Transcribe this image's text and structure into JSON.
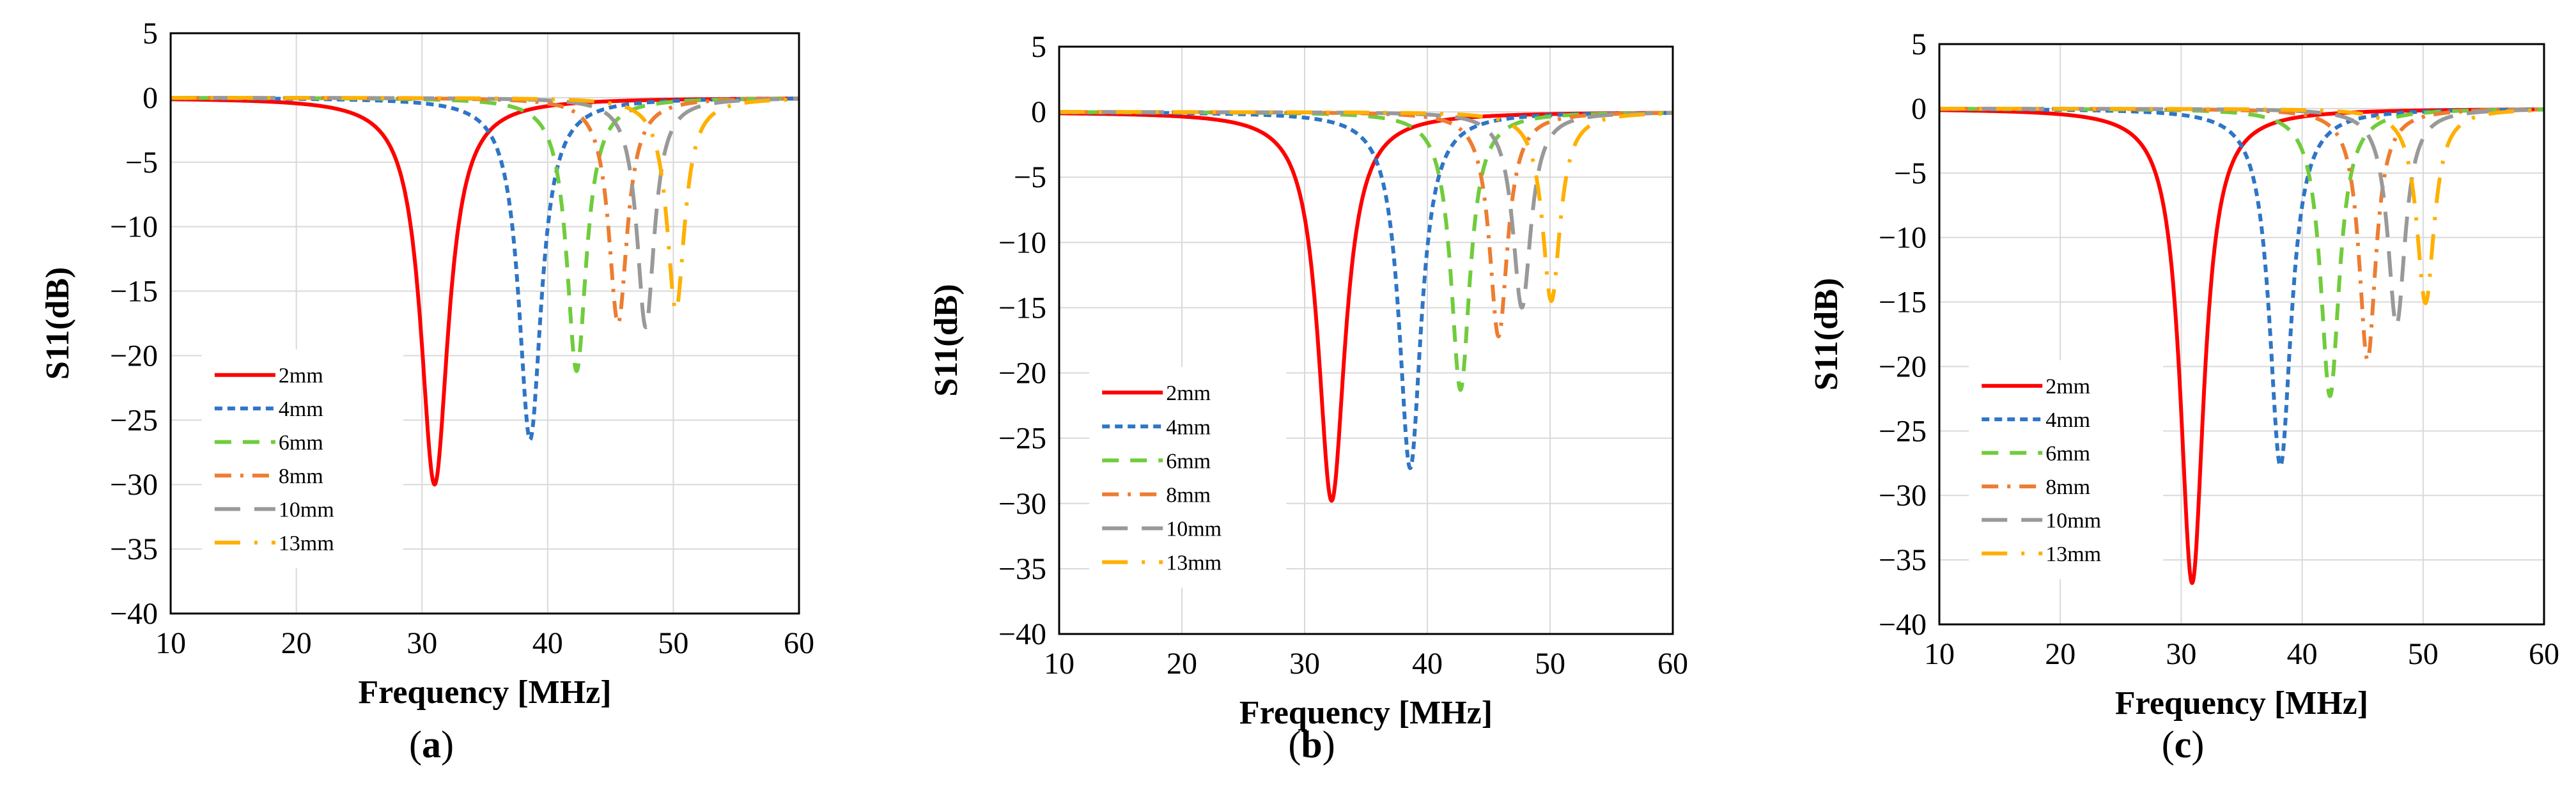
{
  "chart_data": [
    {
      "type": "line",
      "panel_label": "a",
      "xlabel": "Frequency [MHz]",
      "ylabel": "S11(dB)",
      "xlim": [
        10,
        60
      ],
      "ylim": [
        -40,
        5
      ],
      "xticks": [
        10,
        20,
        30,
        40,
        50,
        60
      ],
      "yticks": [
        5,
        0,
        -5,
        -10,
        -15,
        -20,
        -25,
        -30,
        -35,
        -40
      ],
      "grid": true,
      "legend_position": "lower-left",
      "series": [
        {
          "name": "2mm",
          "color": "#ff0000",
          "style": "solid",
          "resonance_mhz": 31.0,
          "min_db": -30.0,
          "halfwidth_mhz": 1.34
        },
        {
          "name": "4mm",
          "color": "#2e75c6",
          "style": "short-dash",
          "resonance_mhz": 38.6,
          "min_db": -26.5,
          "halfwidth_mhz": 1.1
        },
        {
          "name": "6mm",
          "color": "#70cc3c",
          "style": "dash",
          "resonance_mhz": 42.3,
          "min_db": -21.2,
          "halfwidth_mhz": 0.95
        },
        {
          "name": "8mm",
          "color": "#ed7d31",
          "style": "dash-dot",
          "resonance_mhz": 45.6,
          "min_db": -17.5,
          "halfwidth_mhz": 0.9
        },
        {
          "name": "10mm",
          "color": "#999999",
          "style": "long-dash",
          "resonance_mhz": 47.8,
          "min_db": -17.8,
          "halfwidth_mhz": 0.85
        },
        {
          "name": "13mm",
          "color": "#ffb000",
          "style": "long-dash-dot",
          "resonance_mhz": 50.2,
          "min_db": -16.5,
          "halfwidth_mhz": 0.86
        }
      ]
    },
    {
      "type": "line",
      "panel_label": "b",
      "xlabel": "Frequency [MHz]",
      "ylabel": "S11(dB)",
      "xlim": [
        10,
        60
      ],
      "ylim": [
        -40,
        5
      ],
      "xticks": [
        10,
        20,
        30,
        40,
        50,
        60
      ],
      "yticks": [
        5,
        0,
        -5,
        -10,
        -15,
        -20,
        -25,
        -30,
        -35,
        -40
      ],
      "grid": true,
      "legend_position": "lower-left",
      "series": [
        {
          "name": "2mm",
          "color": "#ff0000",
          "style": "solid",
          "resonance_mhz": 32.2,
          "min_db": -29.8,
          "halfwidth_mhz": 1.34
        },
        {
          "name": "4mm",
          "color": "#2e75c6",
          "style": "short-dash",
          "resonance_mhz": 38.6,
          "min_db": -27.3,
          "halfwidth_mhz": 1.1
        },
        {
          "name": "6mm",
          "color": "#70cc3c",
          "style": "dash",
          "resonance_mhz": 42.7,
          "min_db": -21.3,
          "halfwidth_mhz": 0.95
        },
        {
          "name": "8mm",
          "color": "#ed7d31",
          "style": "dash-dot",
          "resonance_mhz": 45.8,
          "min_db": -17.2,
          "halfwidth_mhz": 0.9
        },
        {
          "name": "10mm",
          "color": "#999999",
          "style": "long-dash",
          "resonance_mhz": 47.7,
          "min_db": -15.0,
          "halfwidth_mhz": 0.9
        },
        {
          "name": "13mm",
          "color": "#ffb000",
          "style": "long-dash-dot",
          "resonance_mhz": 50.1,
          "min_db": -14.5,
          "halfwidth_mhz": 0.88
        }
      ]
    },
    {
      "type": "line",
      "panel_label": "c",
      "xlabel": "Frequency [MHz]",
      "ylabel": "S11(dB)",
      "xlim": [
        10,
        60
      ],
      "ylim": [
        -40,
        5
      ],
      "xticks": [
        10,
        20,
        30,
        40,
        50,
        60
      ],
      "yticks": [
        5,
        0,
        -5,
        -10,
        -15,
        -20,
        -25,
        -30,
        -35,
        -40
      ],
      "grid": true,
      "legend_position": "lower-left",
      "series": [
        {
          "name": "2mm",
          "color": "#ff0000",
          "style": "solid",
          "resonance_mhz": 30.9,
          "min_db": -36.8,
          "halfwidth_mhz": 1.2
        },
        {
          "name": "4mm",
          "color": "#2e75c6",
          "style": "short-dash",
          "resonance_mhz": 38.2,
          "min_db": -27.7,
          "halfwidth_mhz": 1.1
        },
        {
          "name": "6mm",
          "color": "#70cc3c",
          "style": "dash",
          "resonance_mhz": 42.3,
          "min_db": -22.3,
          "halfwidth_mhz": 0.95
        },
        {
          "name": "8mm",
          "color": "#ed7d31",
          "style": "dash-dot",
          "resonance_mhz": 45.4,
          "min_db": -19.5,
          "halfwidth_mhz": 0.85
        },
        {
          "name": "10mm",
          "color": "#999999",
          "style": "long-dash",
          "resonance_mhz": 47.8,
          "min_db": -16.8,
          "halfwidth_mhz": 0.88
        },
        {
          "name": "13mm",
          "color": "#ffb000",
          "style": "long-dash-dot",
          "resonance_mhz": 50.2,
          "min_db": -15.1,
          "halfwidth_mhz": 0.88
        }
      ]
    }
  ]
}
